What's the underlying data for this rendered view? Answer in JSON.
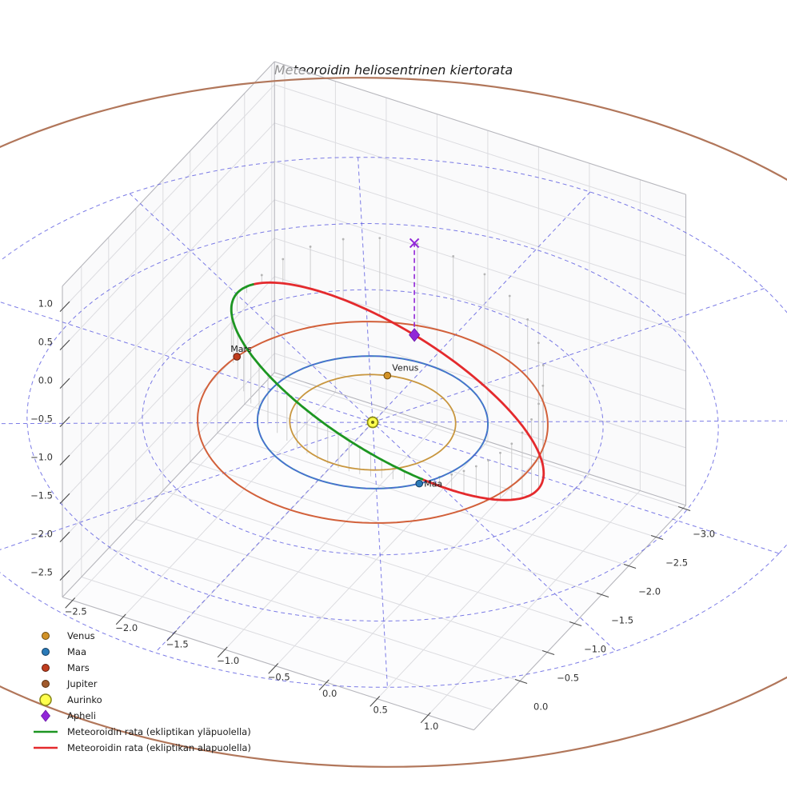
{
  "chart_data": {
    "type": "3d_orbit_plot",
    "title": "Meteoroidin heliosentrinen kiertorata",
    "axes": {
      "x_ticks": {
        "labels": [
          "−2.5",
          "−2.0",
          "−1.5",
          "−1.0",
          "−0.5",
          "0.0",
          "0.5",
          "1.0"
        ],
        "values": [
          -2.5,
          -2.0,
          -1.5,
          -1.0,
          -0.5,
          0.0,
          0.5,
          1.0
        ]
      },
      "y_ticks": {
        "labels": [
          "−3.0",
          "−2.5",
          "−2.0",
          "−1.5",
          "−1.0",
          "−0.5",
          "0.0"
        ],
        "values": [
          -3.0,
          -2.5,
          -2.0,
          -1.5,
          -1.0,
          -0.5,
          0.0
        ]
      },
      "z_ticks": {
        "labels": [
          "1.0",
          "0.5",
          "0.0",
          "−0.5",
          "−1.0",
          "−1.5",
          "−2.0",
          "−2.5"
        ],
        "values": [
          1.0,
          0.5,
          0.0,
          -0.5,
          -1.0,
          -1.5,
          -2.0,
          -2.5
        ]
      },
      "grid_on": true
    },
    "ecliptic_grid": {
      "circle_radii_au": [
        1,
        2,
        3,
        4
      ],
      "radial_line_angles_deg": [
        0,
        30,
        60,
        90,
        120,
        150
      ],
      "color": "#5a5ae0"
    },
    "sun": {
      "label": "Aurinko",
      "fill": "#ffff4d",
      "edge": "#8a8a15"
    },
    "planets": [
      {
        "name": "Venus",
        "orbit_radius_au": 0.72,
        "orbit_color": "#c8963e",
        "marker_color": "#d29227",
        "marker_edge": "#6b4a0f",
        "marker_angle_deg": 252,
        "label": "Venus"
      },
      {
        "name": "Maa",
        "orbit_radius_au": 1.0,
        "orbit_color": "#3d7fc1",
        "marker_color": "#2a7ab8",
        "marker_edge": "#123c5e",
        "marker_angle_deg": 38,
        "label": "Maa"
      },
      {
        "name": "Mars",
        "orbit_radius_au": 1.52,
        "orbit_color": "#d2603a",
        "marker_color": "#c03d1e",
        "marker_edge": "#5f1d0d",
        "marker_angle_deg": 191,
        "label": "Mars"
      },
      {
        "name": "Jupiter",
        "orbit_radius_au": 5.2,
        "orbit_color": "#b1765a",
        "marker_color": "#a05a2c",
        "marker_edge": "#59300f",
        "marker_angle_deg": null,
        "label": null
      }
    ],
    "meteoroid_orbit": {
      "ascending_node_deg": 35,
      "inclination_deg": 37.7,
      "arg_perihelion_deg": 40.9,
      "eccentricity": 0.55,
      "semi_latus_rectum_au": 1.345,
      "above_color": "#1d9622",
      "below_color": "#e42a2d",
      "above_label": "Meteoroidin rata (ekliptikan yläpuolella)",
      "below_label": "Meteoroidin rata (ekliptikan alapuolella)"
    },
    "aphelion": {
      "label": "Apheli",
      "color": "#9127d8",
      "true_anomaly_deg": 180
    },
    "stems": {
      "color": "#c9c9c9",
      "dot_color": "#b5b5b5",
      "step_deg": 7.5
    },
    "legend": [
      {
        "label": "Venus",
        "swatch": "dot",
        "color": "#d29227",
        "edge": "#6b4a0f"
      },
      {
        "label": "Maa",
        "swatch": "dot",
        "color": "#2a7ab8",
        "edge": "#123c5e"
      },
      {
        "label": "Mars",
        "swatch": "dot",
        "color": "#c03d1e",
        "edge": "#5f1d0d"
      },
      {
        "label": "Jupiter",
        "swatch": "dot",
        "color": "#a05a2c",
        "edge": "#59300f"
      },
      {
        "label": "Aurinko",
        "swatch": "circle-lg",
        "color": "#ffff4d",
        "edge": "#8a8a15"
      },
      {
        "label": "Apheli",
        "swatch": "diamond",
        "color": "#9127d8",
        "edge": "#6a14a8"
      },
      {
        "label": "Meteoroidin rata (ekliptikan yläpuolella)",
        "swatch": "line",
        "color": "#1d9622",
        "edge": "#1d9622"
      },
      {
        "label": "Meteoroidin rata (ekliptikan alapuolella)",
        "swatch": "line",
        "color": "#e42a2d",
        "edge": "#e42a2d"
      }
    ]
  }
}
